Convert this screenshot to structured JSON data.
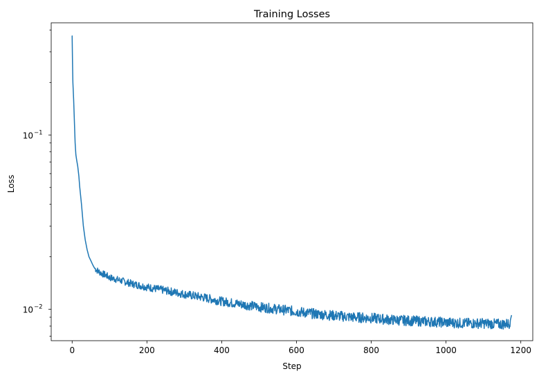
{
  "chart_data": {
    "type": "line",
    "title": "Training Losses",
    "xlabel": "Step",
    "ylabel": "Loss",
    "yscale": "log",
    "xlim": [
      -56,
      1232
    ],
    "ylim": [
      0.0066,
      0.44
    ],
    "x_ticks": [
      0,
      200,
      400,
      600,
      800,
      1000,
      1200
    ],
    "x_tick_labels": [
      "0",
      "200",
      "400",
      "600",
      "800",
      "1000",
      "1200"
    ],
    "y_major_ticks": [
      {
        "value": 0.1,
        "base": "10",
        "exp": "−1"
      },
      {
        "value": 0.01,
        "base": "10",
        "exp": "−2"
      }
    ],
    "y_minor_ticks": [
      0.007,
      0.008,
      0.009,
      0.02,
      0.03,
      0.04,
      0.05,
      0.06,
      0.07,
      0.08,
      0.09,
      0.2,
      0.3,
      0.4
    ],
    "grid": false,
    "legend": "none",
    "line_color": "#1f77b4",
    "series": [
      {
        "x": [
          0,
          1,
          2,
          4,
          6,
          8,
          10,
          12,
          15,
          18,
          20,
          25,
          30,
          35,
          40,
          45,
          50,
          55,
          60,
          70,
          80,
          90,
          100,
          120,
          140,
          160,
          180,
          200,
          250,
          300,
          350,
          400,
          450,
          500,
          550,
          600,
          650,
          700,
          750,
          800,
          850,
          900,
          950,
          1000,
          1050,
          1100,
          1150,
          1170,
          1175
        ],
        "y": [
          0.37,
          0.26,
          0.2,
          0.16,
          0.12,
          0.09,
          0.077,
          0.072,
          0.066,
          0.058,
          0.051,
          0.04,
          0.03,
          0.025,
          0.022,
          0.02,
          0.019,
          0.018,
          0.0172,
          0.0165,
          0.016,
          0.0157,
          0.0152,
          0.0148,
          0.0144,
          0.014,
          0.0137,
          0.0134,
          0.0128,
          0.0122,
          0.0117,
          0.0111,
          0.0107,
          0.0103,
          0.01,
          0.0097,
          0.0094,
          0.0092,
          0.009,
          0.0089,
          0.0087,
          0.0086,
          0.0085,
          0.0084,
          0.0083,
          0.0083,
          0.0082,
          0.0083,
          0.0092
        ]
      }
    ]
  }
}
